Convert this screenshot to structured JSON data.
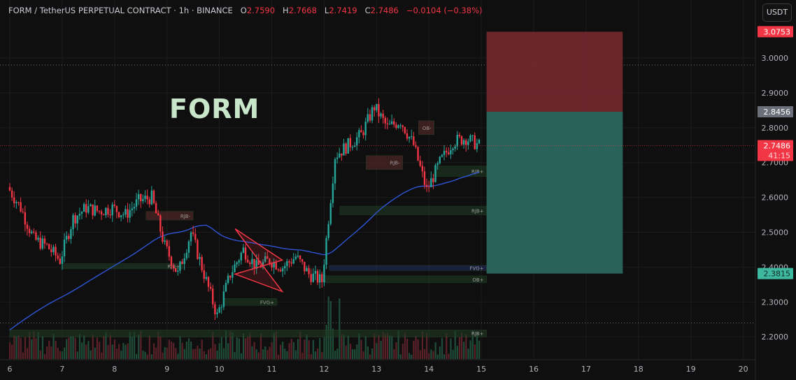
{
  "header": {
    "symbol": "FORM / TetherUS PERPETUAL CONTRACT · 1h · BINANCE",
    "o_label": "O",
    "o": "2.7590",
    "h_label": "H",
    "h": "2.7668",
    "l_label": "L",
    "l": "2.7419",
    "c_label": "C",
    "c": "2.7486",
    "change": "−0.0104 (−0.38%)"
  },
  "currency_button": "USDT",
  "watermark": "FORM",
  "price_labels": {
    "target": "3.0753",
    "entry": "2.8456",
    "last": "2.7486",
    "countdown": "41:15",
    "stop": "2.3815"
  },
  "colors": {
    "up": "#26a69a",
    "down": "#f23645",
    "ema": "#2f55d4",
    "target_zone": "#7a2a30",
    "stop_zone": "#2b6b62",
    "entry_label": "#6b6f7a"
  },
  "chart_data": {
    "type": "candlestick",
    "x_ticks": [
      "6",
      "7",
      "8",
      "9",
      "10",
      "11",
      "12",
      "13",
      "14",
      "15",
      "16",
      "17",
      "18",
      "19",
      "20"
    ],
    "y_ticks": [
      "3.0000",
      "2.9000",
      "2.8000",
      "2.7000",
      "2.6000",
      "2.5000",
      "2.4000",
      "2.3000",
      "2.2000"
    ],
    "ylim": [
      2.2,
      3.0
    ],
    "xlim": [
      6,
      20
    ],
    "closes_6h": [
      2.63,
      2.57,
      2.48,
      2.46,
      2.42,
      2.54,
      2.57,
      2.56,
      2.57,
      2.55,
      2.59,
      2.6,
      2.46,
      2.38,
      2.5,
      2.38,
      2.26,
      2.38,
      2.45,
      2.4,
      2.42,
      2.4,
      2.43,
      2.38,
      2.36,
      2.72,
      2.75,
      2.78,
      2.86,
      2.8,
      2.82,
      2.75,
      2.62,
      2.7,
      2.76,
      2.77,
      2.7486
    ],
    "dotted_levels": [
      2.98,
      2.24
    ],
    "position": {
      "target": 3.0753,
      "entry": 2.8456,
      "stop": 2.3815,
      "x_start": 15.1,
      "x_end": 17.7
    },
    "zones": [
      {
        "label": "RJB+",
        "x0": 12.3,
        "x1": 15.1,
        "p0": 2.575,
        "p1": 2.55
      },
      {
        "label": "RJB+",
        "x0": 14.1,
        "x1": 15.1,
        "p0": 2.69,
        "p1": 2.66
      },
      {
        "label": "RJB+",
        "x0": 6.0,
        "x1": 15.1,
        "p0": 2.22,
        "p1": 2.2
      },
      {
        "label": "FVG+",
        "x0": 12.1,
        "x1": 15.1,
        "p0": 2.405,
        "p1": 2.39
      },
      {
        "label": "OB+",
        "x0": 12.0,
        "x1": 15.1,
        "p0": 2.375,
        "p1": 2.355
      },
      {
        "label": "FVG+",
        "x0": 10.1,
        "x1": 11.1,
        "p0": 2.31,
        "p1": 2.29
      },
      {
        "label": "RJB-",
        "x0": 8.6,
        "x1": 9.5,
        "p0": 2.56,
        "p1": 2.535
      },
      {
        "label": "RJB+",
        "x0": 7.0,
        "x1": 9.3,
        "p0": 2.41,
        "p1": 2.395
      },
      {
        "label": "OB-",
        "x0": 13.8,
        "x1": 14.1,
        "p0": 2.82,
        "p1": 2.78
      },
      {
        "label": "RJB-",
        "x0": 12.8,
        "x1": 13.5,
        "p0": 2.72,
        "p1": 2.68
      }
    ],
    "pattern": [
      [
        10.3,
        2.51
      ],
      [
        11.2,
        2.33
      ],
      [
        10.3,
        2.38
      ],
      [
        11.2,
        2.42
      ]
    ]
  }
}
